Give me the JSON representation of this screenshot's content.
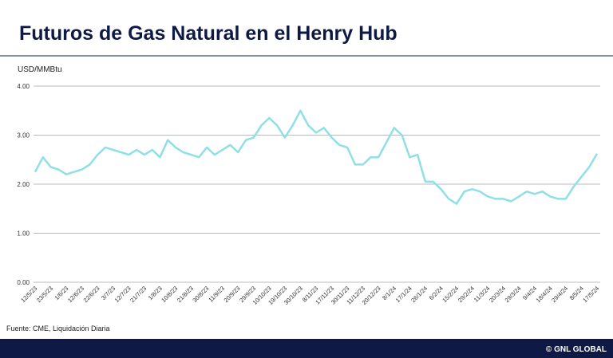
{
  "chart_data": {
    "type": "line",
    "title": "Futuros de Gas Natural en el Henry Hub",
    "y_label": "USD/MMBtu",
    "source": "Fuente: CME, Liquidación Diaria",
    "copyright": "© GNL GLOBAL",
    "color": "#8fe0e6",
    "grid": true,
    "ylim": [
      0,
      4
    ],
    "yticks": [
      {
        "value": 0,
        "label": "0.00"
      },
      {
        "value": 1,
        "label": "1.00"
      },
      {
        "value": 2,
        "label": "2.00"
      },
      {
        "value": 3,
        "label": "3.00"
      },
      {
        "value": 4,
        "label": "4.00"
      }
    ],
    "categories": [
      "12/5/23",
      null,
      "23/5/23",
      null,
      "1/6/23",
      null,
      "12/6/23",
      null,
      "22/6/23",
      null,
      "3/7/23",
      null,
      "12/7/23",
      null,
      "21/7/23",
      null,
      "1/8/23",
      null,
      "10/8/23",
      null,
      "21/8/23",
      null,
      "30/8/23",
      null,
      "11/9/23",
      null,
      "20/9/23",
      null,
      "29/9/23",
      null,
      "10/10/23",
      null,
      "19/10/23",
      null,
      "30/10/23",
      null,
      "8/11/23",
      null,
      "17/11/23",
      null,
      "30/11/23",
      null,
      "11/12/23",
      null,
      "20/12/23",
      null,
      "8/1/24",
      null,
      "17/1/24",
      null,
      "26/1/24",
      null,
      "6/2/24",
      null,
      "15/2/24",
      null,
      "29/2/24",
      null,
      "11/3/24",
      null,
      "20/3/24",
      null,
      "29/3/24",
      null,
      "9/4/24",
      null,
      "18/4/24",
      null,
      "29/4/24",
      null,
      "8/5/24",
      null,
      "17/5/24"
    ],
    "values": [
      2.25,
      2.55,
      2.35,
      2.3,
      2.2,
      2.25,
      2.3,
      2.4,
      2.6,
      2.75,
      2.7,
      2.65,
      2.6,
      2.7,
      2.6,
      2.7,
      2.55,
      2.9,
      2.75,
      2.65,
      2.6,
      2.55,
      2.75,
      2.6,
      2.7,
      2.8,
      2.65,
      2.9,
      2.95,
      3.2,
      3.35,
      3.2,
      2.95,
      3.2,
      3.5,
      3.2,
      3.05,
      3.15,
      2.95,
      2.8,
      2.75,
      2.4,
      2.4,
      2.55,
      2.55,
      2.85,
      3.15,
      3.0,
      2.55,
      2.6,
      2.05,
      2.05,
      1.9,
      1.7,
      1.6,
      1.85,
      1.9,
      1.85,
      1.75,
      1.7,
      1.7,
      1.65,
      1.75,
      1.85,
      1.8,
      1.85,
      1.75,
      1.7,
      1.7,
      1.95,
      2.15,
      2.35,
      2.62
    ]
  }
}
